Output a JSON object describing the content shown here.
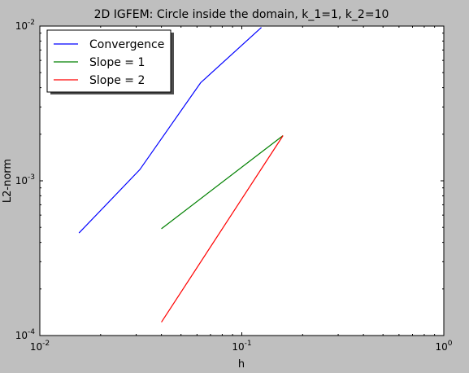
{
  "chart_data": {
    "type": "line",
    "title": "2D IGFEM: Circle inside the domain, k_1=1, k_2=10",
    "xlabel": "h",
    "ylabel": "L2-norm",
    "xscale": "log",
    "yscale": "log",
    "xlim": [
      0.01,
      1
    ],
    "ylim": [
      0.0001,
      0.01
    ],
    "x_ticks": [
      {
        "value": 0.01,
        "base": "10",
        "exp": "-2"
      },
      {
        "value": 0.1,
        "base": "10",
        "exp": "-1"
      },
      {
        "value": 1,
        "base": "10",
        "exp": "0"
      }
    ],
    "y_ticks": [
      {
        "value": 0.0001,
        "base": "10",
        "exp": "-4"
      },
      {
        "value": 0.001,
        "base": "10",
        "exp": "-3"
      },
      {
        "value": 0.01,
        "base": "10",
        "exp": "-2"
      }
    ],
    "legend_position": "top-left",
    "grid": false,
    "series": [
      {
        "name": "Convergence",
        "color": "#0000ff",
        "points": [
          [
            0.015625,
            0.00046
          ],
          [
            0.03125,
            0.00118
          ],
          [
            0.0625,
            0.0043
          ],
          [
            0.125,
            0.0098
          ]
        ]
      },
      {
        "name": "Slope = 1",
        "color": "#008000",
        "points": [
          [
            0.04,
            0.00049
          ],
          [
            0.16,
            0.00196
          ]
        ]
      },
      {
        "name": "Slope = 2",
        "color": "#ff0000",
        "points": [
          [
            0.04,
            0.000122
          ],
          [
            0.16,
            0.00196
          ]
        ]
      }
    ]
  }
}
